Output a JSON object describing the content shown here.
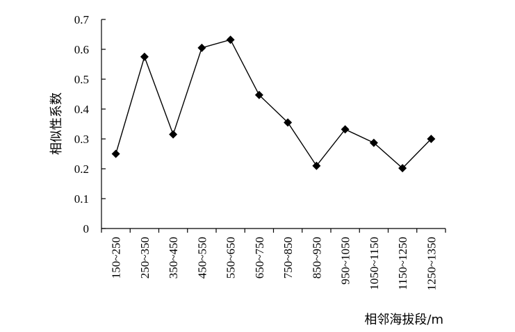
{
  "chart_data": {
    "type": "line",
    "title": "",
    "xlabel": "相邻海拔段/m",
    "ylabel": "相似性系数",
    "categories": [
      "150~250",
      "250~350",
      "350~450",
      "450~550",
      "550~650",
      "650~750",
      "750~850",
      "850~950",
      "950~1050",
      "1050~1150",
      "1150~1250",
      "1250~1350"
    ],
    "series": [
      {
        "values": [
          0.25,
          0.575,
          0.315,
          0.605,
          0.632,
          0.447,
          0.355,
          0.21,
          0.332,
          0.287,
          0.202,
          0.3
        ]
      }
    ],
    "yticks": [
      "0",
      "0.1",
      "0.2",
      "0.3",
      "0.4",
      "0.5",
      "0.6",
      "0.7"
    ],
    "ylim": [
      0,
      0.7
    ],
    "marker": "diamond",
    "grid": false,
    "legend": "none",
    "color": "#000000"
  }
}
